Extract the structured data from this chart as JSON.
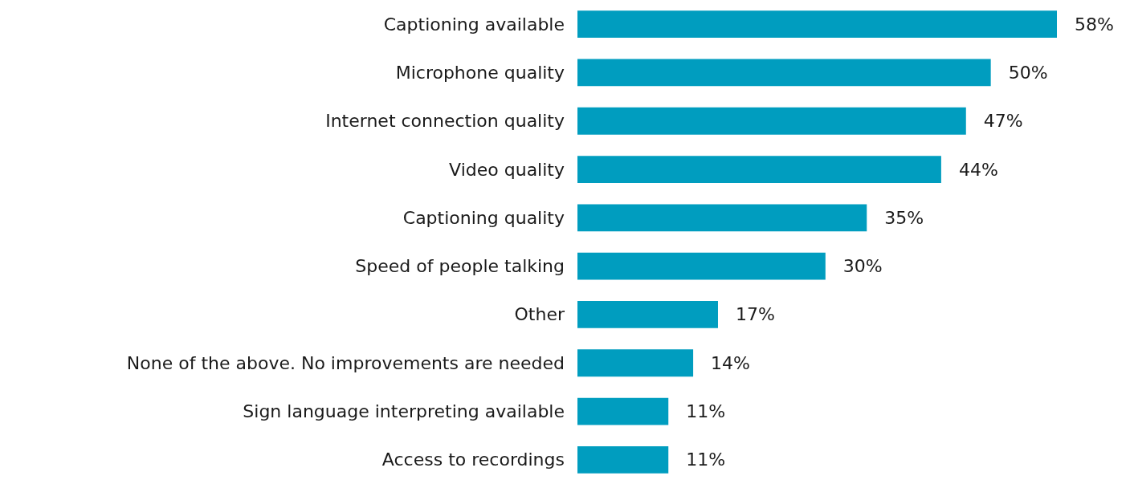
{
  "chart_data": {
    "type": "bar",
    "orientation": "horizontal",
    "categories": [
      "Captioning available",
      "Microphone quality",
      "Internet connection quality",
      "Video quality",
      "Captioning quality",
      "Speed of people talking",
      "Other",
      "None of the above. No improvements are needed",
      "Sign language interpreting available",
      "Access to recordings"
    ],
    "values": [
      58,
      50,
      47,
      44,
      35,
      30,
      17,
      14,
      11,
      11
    ],
    "value_labels": [
      "58%",
      "50%",
      "47%",
      "44%",
      "35%",
      "30%",
      "17%",
      "14%",
      "11%",
      "11%"
    ],
    "color": "#009dbf"
  }
}
